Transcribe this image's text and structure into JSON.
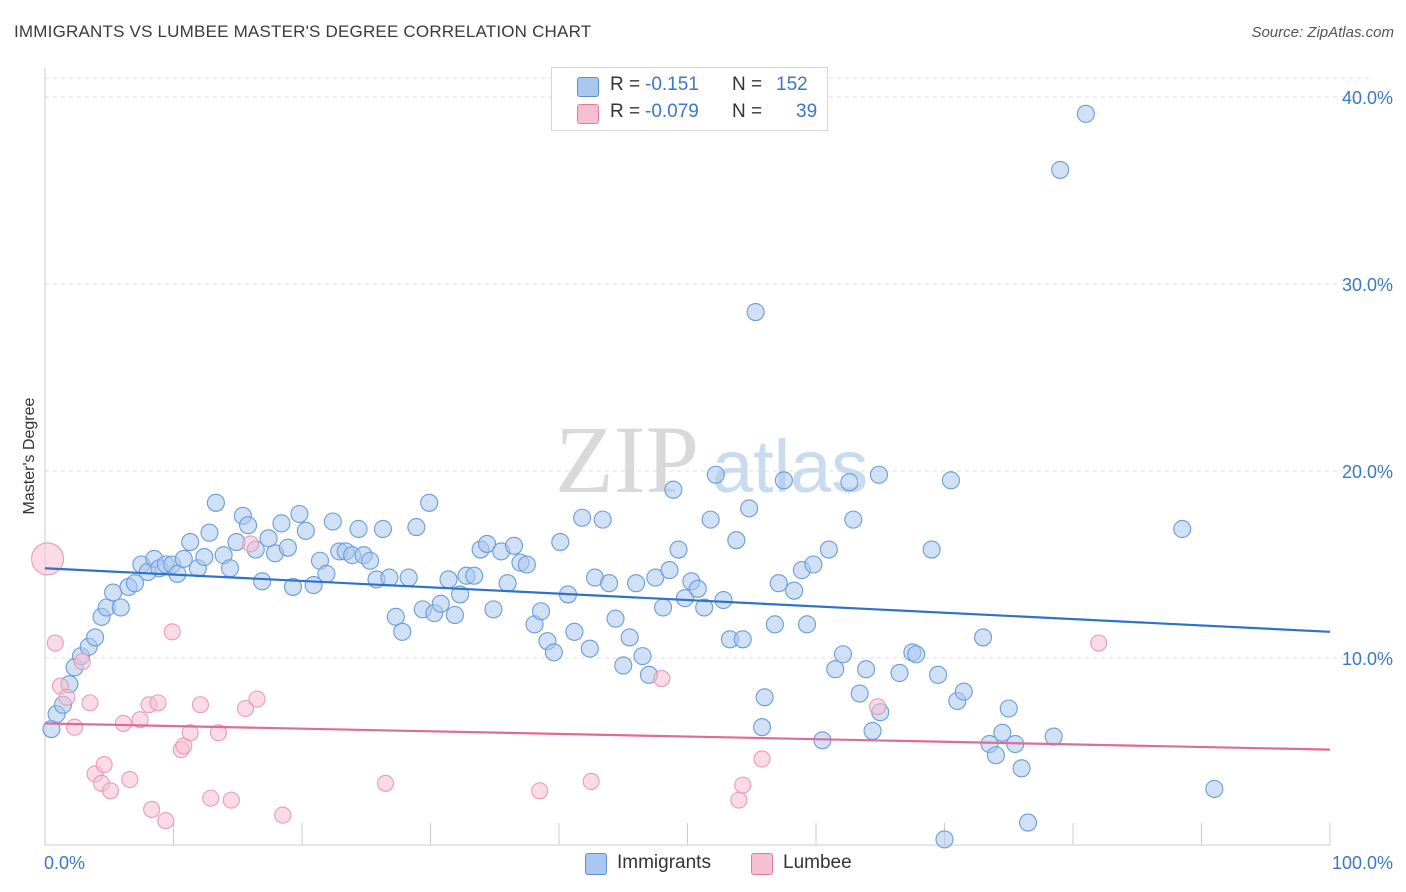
{
  "header": {
    "title": "IMMIGRANTS VS LUMBEE MASTER'S DEGREE CORRELATION CHART",
    "source": "Source: ZipAtlas.com"
  },
  "watermark": {
    "zip": "ZIP",
    "atlas": "atlas"
  },
  "legend": {
    "rows": [
      {
        "r_label": "R =",
        "r_value": "-0.151",
        "n_label": "N =",
        "n_value": "152",
        "color": "#a9c8ef",
        "border": "#5a8fd4"
      },
      {
        "r_label": "R =",
        "r_value": "-0.079",
        "n_label": "N =",
        "n_value": "39",
        "color": "#f7c0d2",
        "border": "#e27ba0"
      }
    ]
  },
  "bottom_legend": {
    "immigrants": "Immigrants",
    "lumbee": "Lumbee"
  },
  "colors": {
    "blue_fill": "#a9c8ef",
    "blue_stroke": "#6a9cd8",
    "blue_line": "#2f72c9",
    "pink_fill": "#f7c0d2",
    "pink_stroke": "#e99ab5",
    "pink_line": "#e06b94",
    "axis_label": "#3b78c4"
  },
  "chart_data": {
    "type": "scatter",
    "title": "IMMIGRANTS VS LUMBEE MASTER'S DEGREE CORRELATION CHART",
    "xlabel": "",
    "ylabel": "Master's Degree",
    "xlim": [
      0,
      100
    ],
    "ylim": [
      0,
      40
    ],
    "x_tick_labels": [
      "0.0%",
      "100.0%"
    ],
    "y_ticks": [
      10,
      20,
      30,
      40
    ],
    "y_tick_labels": [
      "10.0%",
      "20.0%",
      "30.0%",
      "40.0%"
    ],
    "grid": true,
    "series": [
      {
        "name": "Immigrants",
        "r": -0.151,
        "n": 152,
        "trend": {
          "x": [
            0,
            100
          ],
          "y": [
            14.8,
            11.4
          ]
        },
        "points": [
          [
            0.5,
            6.2
          ],
          [
            0.9,
            7.0
          ],
          [
            1.4,
            7.5
          ],
          [
            1.9,
            8.6
          ],
          [
            2.3,
            9.5
          ],
          [
            2.8,
            10.1
          ],
          [
            3.4,
            10.6
          ],
          [
            3.9,
            11.1
          ],
          [
            4.4,
            12.2
          ],
          [
            4.8,
            12.7
          ],
          [
            5.3,
            13.5
          ],
          [
            5.9,
            12.7
          ],
          [
            6.5,
            13.8
          ],
          [
            7.0,
            14.0
          ],
          [
            7.5,
            15.0
          ],
          [
            8.0,
            14.6
          ],
          [
            8.5,
            15.3
          ],
          [
            8.9,
            14.8
          ],
          [
            9.4,
            15.0
          ],
          [
            9.9,
            15.0
          ],
          [
            10.3,
            14.5
          ],
          [
            10.8,
            15.3
          ],
          [
            11.3,
            16.2
          ],
          [
            11.9,
            14.8
          ],
          [
            12.4,
            15.4
          ],
          [
            12.8,
            16.7
          ],
          [
            13.3,
            18.3
          ],
          [
            13.9,
            15.5
          ],
          [
            14.4,
            14.8
          ],
          [
            14.9,
            16.2
          ],
          [
            15.4,
            17.6
          ],
          [
            15.8,
            17.1
          ],
          [
            16.4,
            15.8
          ],
          [
            16.9,
            14.1
          ],
          [
            17.4,
            16.4
          ],
          [
            17.9,
            15.6
          ],
          [
            18.4,
            17.2
          ],
          [
            18.9,
            15.9
          ],
          [
            19.3,
            13.8
          ],
          [
            19.8,
            17.7
          ],
          [
            20.3,
            16.8
          ],
          [
            20.9,
            13.9
          ],
          [
            21.4,
            15.2
          ],
          [
            21.9,
            14.5
          ],
          [
            22.4,
            17.3
          ],
          [
            22.9,
            15.7
          ],
          [
            23.4,
            15.7
          ],
          [
            23.9,
            15.5
          ],
          [
            24.4,
            16.9
          ],
          [
            24.8,
            15.5
          ],
          [
            25.3,
            15.2
          ],
          [
            25.8,
            14.2
          ],
          [
            26.3,
            16.9
          ],
          [
            26.8,
            14.3
          ],
          [
            27.3,
            12.2
          ],
          [
            27.8,
            11.4
          ],
          [
            28.3,
            14.3
          ],
          [
            28.9,
            17.0
          ],
          [
            29.4,
            12.6
          ],
          [
            29.9,
            18.3
          ],
          [
            30.3,
            12.4
          ],
          [
            30.8,
            12.9
          ],
          [
            31.4,
            14.2
          ],
          [
            31.9,
            12.3
          ],
          [
            32.3,
            13.4
          ],
          [
            32.8,
            14.4
          ],
          [
            33.4,
            14.4
          ],
          [
            33.9,
            15.8
          ],
          [
            34.4,
            16.1
          ],
          [
            34.9,
            12.6
          ],
          [
            35.5,
            15.7
          ],
          [
            36.0,
            14.0
          ],
          [
            36.5,
            16.0
          ],
          [
            37.0,
            15.1
          ],
          [
            37.5,
            15.0
          ],
          [
            38.1,
            11.8
          ],
          [
            38.6,
            12.5
          ],
          [
            39.1,
            10.9
          ],
          [
            39.6,
            10.3
          ],
          [
            40.1,
            16.2
          ],
          [
            40.7,
            13.4
          ],
          [
            41.2,
            11.4
          ],
          [
            41.8,
            17.5
          ],
          [
            42.4,
            10.5
          ],
          [
            42.8,
            14.3
          ],
          [
            43.4,
            17.4
          ],
          [
            43.9,
            14.0
          ],
          [
            44.4,
            12.1
          ],
          [
            45.0,
            9.6
          ],
          [
            45.5,
            11.1
          ],
          [
            46.0,
            14.0
          ],
          [
            46.5,
            10.1
          ],
          [
            47.0,
            9.1
          ],
          [
            47.5,
            14.3
          ],
          [
            48.1,
            12.7
          ],
          [
            48.6,
            14.7
          ],
          [
            48.9,
            19.0
          ],
          [
            49.3,
            15.8
          ],
          [
            49.8,
            13.2
          ],
          [
            50.3,
            14.1
          ],
          [
            50.8,
            13.7
          ],
          [
            51.3,
            12.7
          ],
          [
            51.8,
            17.4
          ],
          [
            52.2,
            19.8
          ],
          [
            52.8,
            13.1
          ],
          [
            53.3,
            11.0
          ],
          [
            53.8,
            16.3
          ],
          [
            54.3,
            11.0
          ],
          [
            54.8,
            18.0
          ],
          [
            55.3,
            28.5
          ],
          [
            55.8,
            6.3
          ],
          [
            56.0,
            7.9
          ],
          [
            56.8,
            11.8
          ],
          [
            57.1,
            14.0
          ],
          [
            57.5,
            19.5
          ],
          [
            58.3,
            13.6
          ],
          [
            58.9,
            14.7
          ],
          [
            59.3,
            11.8
          ],
          [
            59.8,
            15.0
          ],
          [
            60.5,
            5.6
          ],
          [
            61.0,
            15.8
          ],
          [
            61.5,
            9.4
          ],
          [
            62.1,
            10.2
          ],
          [
            62.6,
            19.4
          ],
          [
            62.9,
            17.4
          ],
          [
            63.4,
            8.1
          ],
          [
            63.9,
            9.4
          ],
          [
            64.4,
            6.1
          ],
          [
            64.9,
            19.8
          ],
          [
            65.0,
            7.1
          ],
          [
            66.5,
            9.2
          ],
          [
            67.5,
            10.3
          ],
          [
            67.8,
            10.2
          ],
          [
            69.0,
            15.8
          ],
          [
            69.5,
            9.1
          ],
          [
            70.0,
            0.3
          ],
          [
            70.5,
            19.5
          ],
          [
            71.0,
            7.7
          ],
          [
            71.5,
            8.2
          ],
          [
            73.0,
            11.1
          ],
          [
            73.5,
            5.4
          ],
          [
            74.0,
            4.8
          ],
          [
            74.5,
            6.0
          ],
          [
            75.0,
            7.3
          ],
          [
            75.5,
            5.4
          ],
          [
            76.0,
            4.1
          ],
          [
            76.5,
            1.2
          ],
          [
            78.5,
            5.8
          ],
          [
            79.0,
            36.1
          ],
          [
            81.0,
            39.1
          ],
          [
            88.5,
            16.9
          ],
          [
            91.0,
            3.0
          ]
        ]
      },
      {
        "name": "Lumbee",
        "r": -0.079,
        "n": 39,
        "trend": {
          "x": [
            0,
            100
          ],
          "y": [
            6.5,
            5.1
          ]
        },
        "points": [
          [
            0.2,
            15.3
          ],
          [
            0.8,
            10.8
          ],
          [
            1.2,
            8.5
          ],
          [
            1.7,
            7.9
          ],
          [
            2.3,
            6.3
          ],
          [
            2.9,
            9.8
          ],
          [
            3.5,
            7.6
          ],
          [
            3.9,
            3.8
          ],
          [
            4.4,
            3.3
          ],
          [
            4.6,
            4.3
          ],
          [
            5.1,
            2.9
          ],
          [
            6.1,
            6.5
          ],
          [
            6.6,
            3.5
          ],
          [
            7.4,
            6.7
          ],
          [
            8.1,
            7.5
          ],
          [
            8.3,
            1.9
          ],
          [
            8.8,
            7.6
          ],
          [
            9.4,
            1.3
          ],
          [
            9.9,
            11.4
          ],
          [
            10.6,
            5.1
          ],
          [
            10.8,
            5.3
          ],
          [
            11.3,
            6.0
          ],
          [
            12.1,
            7.5
          ],
          [
            12.9,
            2.5
          ],
          [
            13.5,
            6.0
          ],
          [
            14.5,
            2.4
          ],
          [
            15.6,
            7.3
          ],
          [
            16.0,
            16.1
          ],
          [
            16.5,
            7.8
          ],
          [
            18.5,
            1.6
          ],
          [
            26.5,
            3.3
          ],
          [
            38.5,
            2.9
          ],
          [
            42.5,
            3.4
          ],
          [
            48.0,
            8.9
          ],
          [
            54.0,
            2.4
          ],
          [
            54.3,
            3.2
          ],
          [
            55.8,
            4.6
          ],
          [
            64.8,
            7.4
          ],
          [
            82.0,
            10.8
          ]
        ]
      }
    ]
  }
}
